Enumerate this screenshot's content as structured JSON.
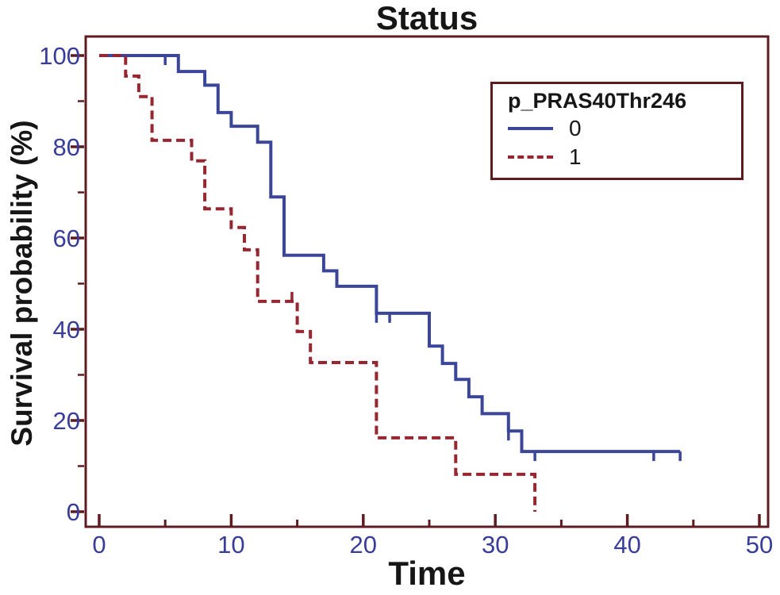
{
  "page": {
    "background_color": "#ffffff"
  },
  "chart_data": {
    "type": "line",
    "subtype": "kaplan-meier-step-survival",
    "title": "Status",
    "xlabel": "Time",
    "ylabel": "Survival probability (%)",
    "xlim": [
      0,
      50
    ],
    "ylim": [
      0,
      100
    ],
    "xticks_major": [
      0,
      10,
      20,
      30,
      40,
      50
    ],
    "xticks_minor": [
      5,
      15,
      25,
      35,
      45
    ],
    "yticks_major": [
      0,
      20,
      40,
      60,
      80,
      100
    ],
    "yticks_minor": [
      10,
      30,
      50,
      70,
      90
    ],
    "grid": "off",
    "axis_color": "#5e1c20",
    "tick_label_color": "#383d99",
    "text_color": "#161616",
    "legend": {
      "title": "p_PRAS40Thr246",
      "position": "inside-top-right",
      "border_color": "#5e1c20",
      "entries": [
        {
          "label": "0",
          "line_style": "solid",
          "color": "#3b4699"
        },
        {
          "label": "1",
          "line_style": "dashed",
          "color": "#962731"
        }
      ]
    },
    "series": [
      {
        "name": "0",
        "color": "#3b4699",
        "style": "solid",
        "points": [
          [
            0,
            100
          ],
          [
            6,
            100
          ],
          [
            6,
            96.5
          ],
          [
            8,
            96.5
          ],
          [
            8,
            93.5
          ],
          [
            9,
            93.5
          ],
          [
            9,
            87.5
          ],
          [
            10,
            87.5
          ],
          [
            10,
            84.5
          ],
          [
            12,
            84.5
          ],
          [
            12,
            81
          ],
          [
            13,
            81
          ],
          [
            13,
            69
          ],
          [
            14,
            69
          ],
          [
            14,
            56.2
          ],
          [
            17,
            56.2
          ],
          [
            17,
            52.8
          ],
          [
            18,
            52.8
          ],
          [
            18,
            49.4
          ],
          [
            21,
            49.4
          ],
          [
            21,
            43.5
          ],
          [
            25,
            43.5
          ],
          [
            25,
            36.3
          ],
          [
            26,
            36.3
          ],
          [
            26,
            32.5
          ],
          [
            27,
            32.5
          ],
          [
            27,
            29
          ],
          [
            28,
            29
          ],
          [
            28,
            25.2
          ],
          [
            29,
            25.2
          ],
          [
            29,
            21.5
          ],
          [
            31,
            21.5
          ],
          [
            31,
            17.7
          ],
          [
            32,
            17.7
          ],
          [
            32,
            13.2
          ],
          [
            44,
            13.2
          ]
        ],
        "censor_marks": [
          {
            "t": 5,
            "s": 100,
            "dir": "down"
          },
          {
            "t": 21,
            "s": 43.5,
            "dir": "down"
          },
          {
            "t": 22,
            "s": 43.5,
            "dir": "down"
          },
          {
            "t": 31,
            "s": 17.7,
            "dir": "down"
          },
          {
            "t": 33,
            "s": 13.2,
            "dir": "down"
          },
          {
            "t": 42,
            "s": 13.2,
            "dir": "down"
          },
          {
            "t": 44,
            "s": 13.2,
            "dir": "down"
          }
        ]
      },
      {
        "name": "1",
        "color": "#962731",
        "style": "dashed",
        "points": [
          [
            0,
            100
          ],
          [
            2,
            100
          ],
          [
            2,
            95.5
          ],
          [
            3,
            95.5
          ],
          [
            3,
            91
          ],
          [
            4,
            91
          ],
          [
            4,
            81.4
          ],
          [
            7,
            81.4
          ],
          [
            7,
            76.9
          ],
          [
            8,
            76.9
          ],
          [
            8,
            66.4
          ],
          [
            10,
            66.4
          ],
          [
            10,
            62.3
          ],
          [
            11,
            62.3
          ],
          [
            11,
            57.4
          ],
          [
            12,
            57.4
          ],
          [
            12,
            46.1
          ],
          [
            15,
            46.1
          ],
          [
            15,
            39.5
          ],
          [
            16,
            39.5
          ],
          [
            16,
            32.7
          ],
          [
            21,
            32.7
          ],
          [
            21,
            16.2
          ],
          [
            27,
            16.2
          ],
          [
            27,
            8.2
          ],
          [
            33,
            8.2
          ],
          [
            33,
            0
          ]
        ],
        "censor_marks": [
          {
            "t": 14.6,
            "s": 46.1,
            "dir": "up"
          }
        ]
      }
    ]
  }
}
